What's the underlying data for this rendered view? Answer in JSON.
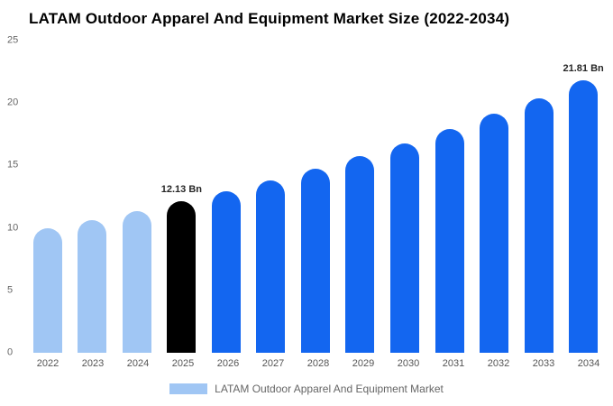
{
  "title": "LATAM Outdoor Apparel And Equipment Market Size (2022-2034)",
  "legend": {
    "label": "LATAM Outdoor Apparel And Equipment Market",
    "swatch_color": "#a0c6f4"
  },
  "colors": {
    "historical": "#a0c6f4",
    "base_year": "#000000",
    "forecast": "#1366f0"
  },
  "chart_data": {
    "type": "bar",
    "title": "LATAM Outdoor Apparel And Equipment Market Size (2022-2034)",
    "categories": [
      "2022",
      "2023",
      "2024",
      "2025",
      "2026",
      "2027",
      "2028",
      "2029",
      "2030",
      "2031",
      "2032",
      "2033",
      "2034"
    ],
    "values": [
      9.98,
      10.65,
      11.37,
      12.13,
      12.94,
      13.81,
      14.74,
      15.73,
      16.79,
      17.92,
      19.12,
      20.41,
      21.81
    ],
    "bar_colors": [
      "#a0c6f4",
      "#a0c6f4",
      "#a0c6f4",
      "#000000",
      "#1366f0",
      "#1366f0",
      "#1366f0",
      "#1366f0",
      "#1366f0",
      "#1366f0",
      "#1366f0",
      "#1366f0",
      "#1366f0"
    ],
    "annotations": [
      {
        "index": 3,
        "text": "12.13 Bn"
      },
      {
        "index": 12,
        "text": "21.81 Bn"
      }
    ],
    "xlabel": "",
    "ylabel": "",
    "ylim": [
      0,
      25
    ],
    "yticks": [
      0,
      5,
      10,
      15,
      20,
      25
    ],
    "grid": false,
    "legend_position": "bottom",
    "unit": "Bn"
  }
}
